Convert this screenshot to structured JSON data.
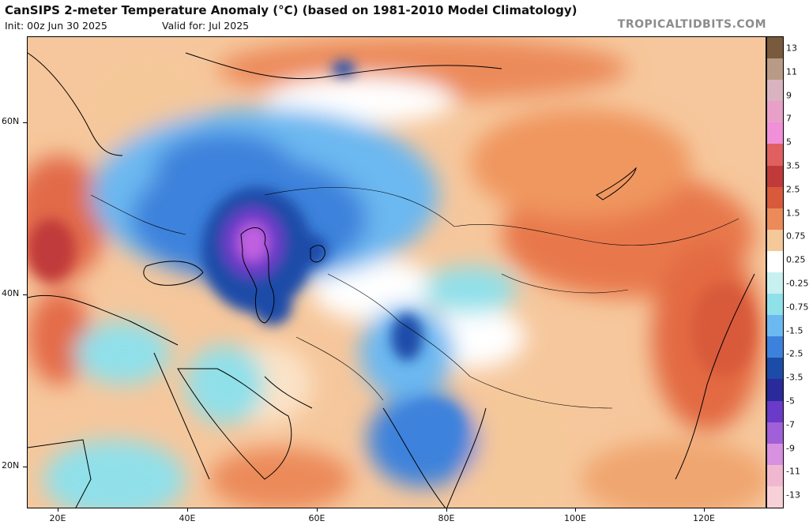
{
  "header": {
    "title": "CanSIPS 2-meter Temperature Anomaly (°C) (based on 1981-2010 Model Climatology)",
    "init": "Init: 00z Jun 30 2025",
    "valid": "Valid for: Jul 2025",
    "brand": "TROPICALTIDBITS.COM"
  },
  "axes": {
    "lat_labels": [
      "60N",
      "40N",
      "20N"
    ],
    "lon_labels": [
      "20E",
      "40E",
      "60E",
      "80E",
      "100E",
      "120E"
    ]
  },
  "colorbar": {
    "labels": [
      "13",
      "11",
      "9",
      "7",
      "5",
      "3.5",
      "2.5",
      "1.5",
      "0.75",
      "0.25",
      "-0.25",
      "-0.75",
      "-1.5",
      "-2.5",
      "-3.5",
      "-5",
      "-7",
      "-9",
      "-11",
      "-13"
    ],
    "colors": [
      "#7a5a3c",
      "#b89a86",
      "#d9b4c0",
      "#e8a0c8",
      "#f090d8",
      "#e06060",
      "#c03a3a",
      "#d85a3a",
      "#ec8a5a",
      "#f5c89a",
      "#ffffff",
      "#c8f0f0",
      "#90e0ea",
      "#6cb8f0",
      "#3c82dc",
      "#1c4ca8",
      "#2a2a9a",
      "#6a3ac8",
      "#a060d8",
      "#d890e0",
      "#f0b8d0",
      "#f8d0d8"
    ]
  }
}
